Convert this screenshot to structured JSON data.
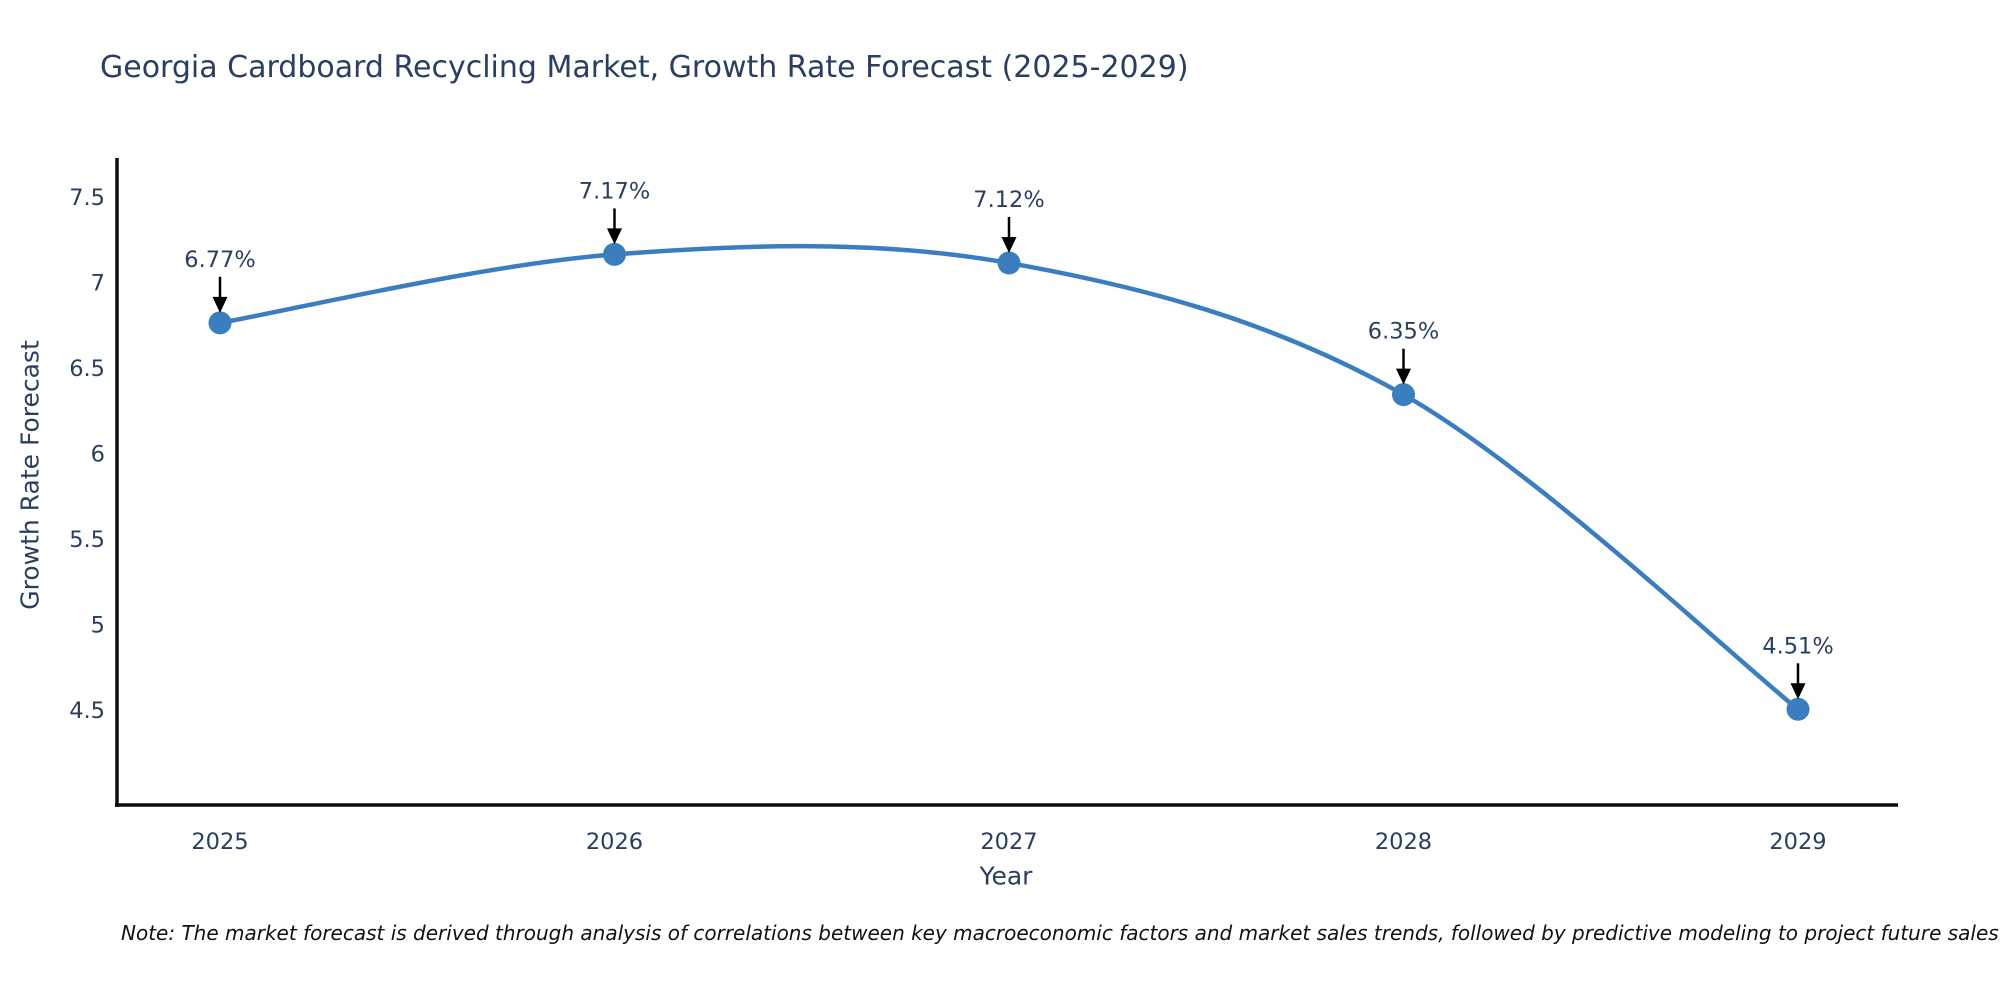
{
  "chart_data": {
    "type": "line",
    "title": "Georgia Cardboard Recycling Market, Growth Rate Forecast (2025-2029)",
    "xlabel": "Year",
    "ylabel": "Growth Rate Forecast",
    "categories": [
      "2025",
      "2026",
      "2027",
      "2028",
      "2029"
    ],
    "series": [
      {
        "name": "Growth Rate Forecast",
        "values": [
          6.77,
          7.17,
          7.12,
          6.35,
          4.51
        ]
      }
    ],
    "point_labels": [
      "6.77%",
      "7.17%",
      "7.12%",
      "6.35%",
      "4.51%"
    ],
    "y_ticks": [
      "7.5",
      "7",
      "6.5",
      "6",
      "5.5",
      "5",
      "4.5"
    ],
    "y_tick_values": [
      7.5,
      7.0,
      6.5,
      6.0,
      5.5,
      5.0,
      4.5
    ],
    "ylim": [
      4.05,
      7.75
    ],
    "line_shape": "spline",
    "grid": false,
    "legend_position": "none",
    "annotation_arrows": true,
    "colors": {
      "line": "#3a7ebf",
      "marker": "#3a7ebf",
      "axis": "#0d0d0d",
      "text": "#2a3f5f",
      "arrow": "#000000",
      "background": "#ffffff"
    }
  },
  "note": {
    "text": "Note: The market forecast is derived through analysis of correlations between key macroeconomic factors and market sales trends, followed by predictive modeling to project future sales"
  }
}
